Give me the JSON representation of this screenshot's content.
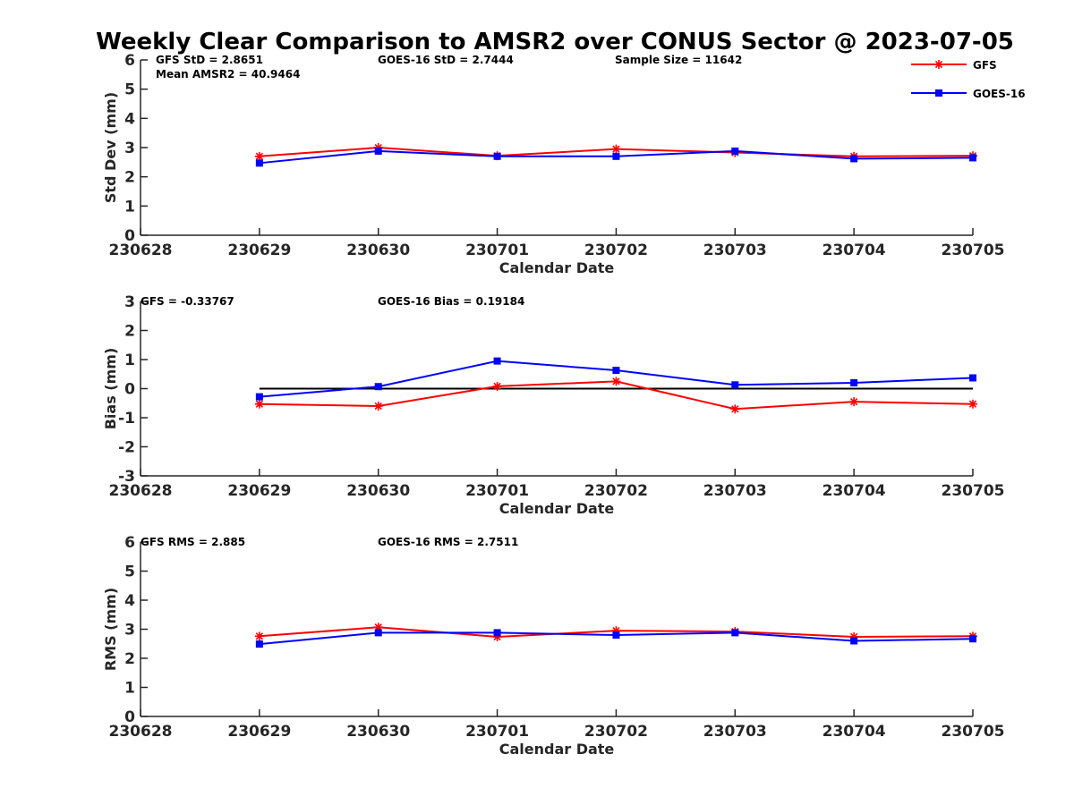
{
  "title": "Weekly Clear Comparison to AMSR2 over CONUS Sector @ 2023-07-05",
  "legend": {
    "placement": "top-right",
    "entries": [
      {
        "name": "GFS",
        "color": "#ff0000",
        "marker": "asterisk"
      },
      {
        "name": "GOES-16",
        "color": "#0000ff",
        "marker": "square"
      }
    ]
  },
  "chart_data": [
    {
      "type": "line",
      "xlabel": "Calendar Date",
      "ylabel": "Std Dev (mm)",
      "x_ticks": [
        "230628",
        "230629",
        "230630",
        "230701",
        "230702",
        "230703",
        "230704",
        "230705"
      ],
      "ylim": [
        0,
        6
      ],
      "y_ticks": [
        "0",
        "1",
        "2",
        "3",
        "4",
        "5",
        "6"
      ],
      "annotations": [
        "GFS StD = 2.8651",
        "Mean AMSR2 = 40.9464",
        "GOES-16 StD = 2.7444",
        "Sample Size = 11642"
      ],
      "series": [
        {
          "name": "GFS",
          "color": "#ff0000",
          "marker": "asterisk",
          "x": [
            "230629",
            "230630",
            "230701",
            "230702",
            "230703",
            "230704",
            "230705"
          ],
          "values": [
            2.7,
            3.0,
            2.72,
            2.95,
            2.83,
            2.7,
            2.72
          ]
        },
        {
          "name": "GOES-16",
          "color": "#0000ff",
          "marker": "square",
          "x": [
            "230629",
            "230630",
            "230701",
            "230702",
            "230703",
            "230704",
            "230705"
          ],
          "values": [
            2.47,
            2.88,
            2.7,
            2.7,
            2.88,
            2.62,
            2.65
          ]
        }
      ]
    },
    {
      "type": "line",
      "xlabel": "Calendar Date",
      "ylabel": "Bias (mm)",
      "x_ticks": [
        "230628",
        "230629",
        "230630",
        "230701",
        "230702",
        "230703",
        "230704",
        "230705"
      ],
      "ylim": [
        -3,
        3
      ],
      "y_ticks": [
        "-3",
        "-2",
        "-1",
        "0",
        "1",
        "2",
        "3"
      ],
      "reference_line": 0,
      "annotations": [
        "GFS = -0.33767",
        "GOES-16 Bias  = 0.19184"
      ],
      "series": [
        {
          "name": "GFS",
          "color": "#ff0000",
          "marker": "asterisk",
          "x": [
            "230629",
            "230630",
            "230701",
            "230702",
            "230703",
            "230704",
            "230705"
          ],
          "values": [
            -0.53,
            -0.6,
            0.08,
            0.25,
            -0.7,
            -0.45,
            -0.53
          ]
        },
        {
          "name": "GOES-16",
          "color": "#0000ff",
          "marker": "square",
          "x": [
            "230629",
            "230630",
            "230701",
            "230702",
            "230703",
            "230704",
            "230705"
          ],
          "values": [
            -0.28,
            0.07,
            0.95,
            0.63,
            0.13,
            0.2,
            0.37
          ]
        }
      ]
    },
    {
      "type": "line",
      "xlabel": "Calendar Date",
      "ylabel": "RMS (mm)",
      "x_ticks": [
        "230628",
        "230629",
        "230630",
        "230701",
        "230702",
        "230703",
        "230704",
        "230705"
      ],
      "ylim": [
        0,
        6
      ],
      "y_ticks": [
        "0",
        "1",
        "2",
        "3",
        "4",
        "5",
        "6"
      ],
      "annotations": [
        "GFS RMS = 2.885",
        "GOES-16 RMS = 2.7511"
      ],
      "series": [
        {
          "name": "GFS",
          "color": "#ff0000",
          "marker": "asterisk",
          "x": [
            "230629",
            "230630",
            "230701",
            "230702",
            "230703",
            "230704",
            "230705"
          ],
          "values": [
            2.76,
            3.07,
            2.74,
            2.95,
            2.92,
            2.74,
            2.76
          ]
        },
        {
          "name": "GOES-16",
          "color": "#0000ff",
          "marker": "square",
          "x": [
            "230629",
            "230630",
            "230701",
            "230702",
            "230703",
            "230704",
            "230705"
          ],
          "values": [
            2.49,
            2.88,
            2.88,
            2.8,
            2.88,
            2.6,
            2.67
          ]
        }
      ]
    }
  ]
}
